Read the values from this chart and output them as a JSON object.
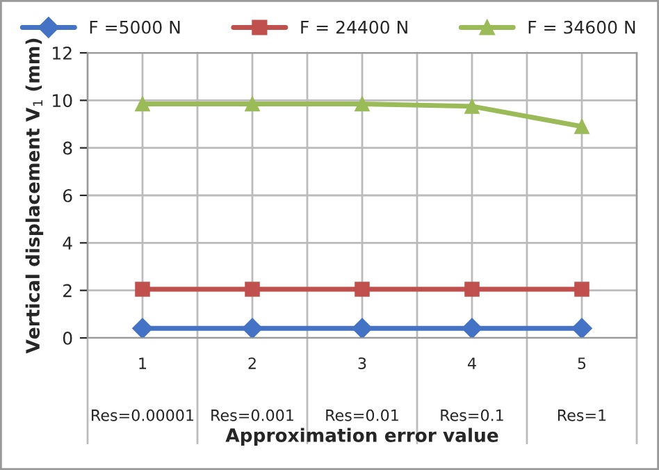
{
  "chart_data": {
    "type": "line",
    "xlabel": "Approximation error value",
    "ylabel": "Vertical displacement V$_{1}$ (mm)",
    "categories": [
      "1\n\n\nRes=0.00001",
      "2\n\n\nRes=0.001",
      "3\n\n\nRes=0.01",
      "4\n\n\nRes=0.1",
      "5\n\n\nRes=1"
    ],
    "series": [
      {
        "name": "F =5000 N",
        "color": "#4472c4",
        "marker": "diamond",
        "values": [
          0.4,
          0.4,
          0.4,
          0.4,
          0.4
        ]
      },
      {
        "name": "F = 24400 N",
        "color": "#c0504d",
        "marker": "square",
        "values": [
          2.05,
          2.05,
          2.05,
          2.05,
          2.05
        ]
      },
      {
        "name": "F = 34600 N",
        "color": "#9bbb59",
        "marker": "triangle",
        "values": [
          9.85,
          9.85,
          9.85,
          9.75,
          8.9
        ]
      }
    ],
    "ylim": [
      0,
      12
    ],
    "yticks": [
      0,
      2,
      4,
      6,
      8,
      10,
      12
    ],
    "grid": true,
    "legend": "top",
    "line_style": "solid"
  }
}
